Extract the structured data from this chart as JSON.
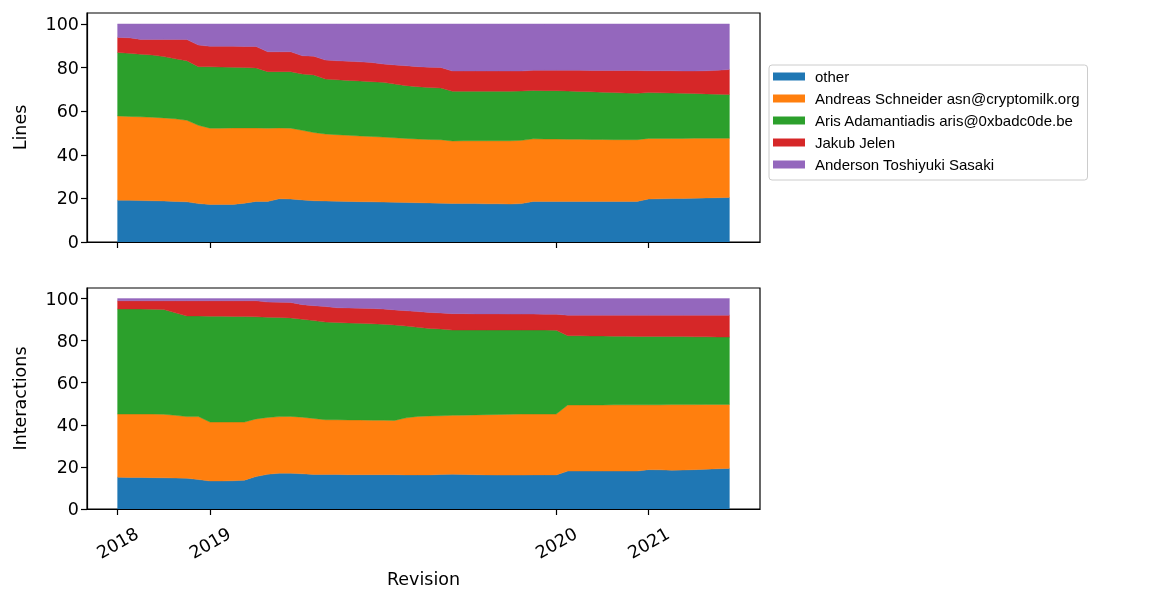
{
  "chart_data": [
    {
      "type": "area",
      "ylabel": "Lines",
      "stacked": true,
      "legend": "right",
      "tick_labels": "y",
      "categories": [
        "2018",
        null,
        null,
        null,
        null,
        null,
        null,
        null,
        "2019",
        null,
        null,
        null,
        null,
        null,
        null,
        null,
        null,
        null,
        null,
        null,
        null,
        null,
        null,
        null,
        null,
        null,
        null,
        null,
        null,
        null,
        null,
        null,
        null,
        null,
        null,
        null,
        null,
        null,
        "2020",
        null,
        null,
        null,
        null,
        null,
        null,
        null,
        "2021",
        null,
        null,
        null,
        null,
        null,
        null,
        null
      ],
      "series": [
        {
          "name": "other",
          "color": "#1f77b4",
          "values": [
            19.2,
            19.1,
            19.0,
            18.9,
            18.8,
            18.6,
            18.4,
            17.6,
            17.2,
            17.2,
            17.2,
            17.8,
            18.6,
            18.6,
            19.8,
            19.7,
            19.3,
            18.9,
            18.8,
            18.7,
            18.6,
            18.5,
            18.4,
            18.3,
            18.2,
            18.1,
            18.0,
            17.9,
            17.8,
            17.7,
            17.6,
            17.6,
            17.5,
            17.5,
            17.4,
            17.6,
            18.6,
            18.6,
            18.6,
            18.6,
            18.6,
            18.6,
            18.6,
            18.6,
            18.6,
            18.6,
            19.7,
            19.8,
            19.9,
            20.0,
            20.1,
            20.2,
            20.3,
            20.4
          ]
        },
        {
          "name": "Andreas Schneider asn@cryptomilk.org",
          "color": "#ff7f0e",
          "values": [
            38.6,
            38.5,
            38.4,
            38.3,
            38.1,
            37.9,
            37.4,
            35.9,
            35.0,
            35.0,
            35.1,
            34.5,
            33.7,
            33.6,
            32.5,
            32.5,
            31.9,
            31.3,
            30.7,
            30.5,
            30.3,
            30.1,
            30.0,
            29.8,
            29.6,
            29.4,
            29.2,
            29.1,
            29.1,
            28.6,
            28.8,
            28.8,
            28.9,
            28.9,
            29.0,
            29.0,
            28.7,
            28.6,
            28.6,
            28.5,
            28.5,
            28.4,
            28.4,
            28.3,
            28.3,
            28.3,
            27.8,
            27.7,
            27.6,
            27.5,
            27.5,
            27.4,
            27.3,
            27.2
          ]
        },
        {
          "name": "Aris Adamantiadis aris@0xbadc0de.be",
          "color": "#2ca02c",
          "values": [
            29.1,
            28.9,
            28.7,
            28.5,
            28.1,
            27.5,
            27.3,
            26.9,
            28.1,
            28.0,
            27.8,
            27.7,
            27.5,
            25.9,
            25.8,
            25.9,
            25.8,
            26.4,
            25.2,
            25.2,
            25.2,
            25.2,
            25.1,
            25.1,
            24.6,
            24.2,
            24.0,
            23.8,
            23.7,
            22.8,
            22.7,
            22.7,
            22.7,
            22.7,
            22.7,
            22.6,
            22.2,
            22.2,
            22.2,
            22.1,
            21.9,
            21.9,
            21.7,
            21.6,
            21.4,
            21.3,
            21.0,
            20.9,
            20.8,
            20.7,
            20.5,
            20.3,
            20.2,
            20.0
          ]
        },
        {
          "name": "Jakub Jelen",
          "color": "#d62728",
          "values": [
            6.9,
            7.1,
            6.8,
            7.2,
            7.9,
            8.9,
            9.7,
            9.9,
            9.4,
            9.5,
            9.6,
            9.6,
            9.8,
            9.1,
            9.1,
            9.1,
            8.4,
            8.6,
            8.7,
            8.7,
            8.8,
            8.8,
            8.8,
            8.4,
            8.8,
            9.1,
            9.2,
            9.3,
            9.4,
            9.3,
            9.3,
            9.3,
            9.3,
            9.3,
            9.3,
            9.2,
            9.2,
            9.3,
            9.3,
            9.5,
            9.7,
            9.7,
            9.9,
            10.1,
            10.3,
            10.4,
            10.0,
            10.1,
            10.2,
            10.2,
            10.3,
            10.6,
            10.9,
            11.5
          ]
        },
        {
          "name": "Anderson Toshiyuki Sasaki",
          "color": "#9467bd",
          "values": [
            6.2,
            6.4,
            7.1,
            7.1,
            7.1,
            7.1,
            7.2,
            9.7,
            10.3,
            10.3,
            10.3,
            10.4,
            10.4,
            12.8,
            12.8,
            12.8,
            14.6,
            14.8,
            16.6,
            16.9,
            17.1,
            17.4,
            17.7,
            18.4,
            18.8,
            19.2,
            19.6,
            19.9,
            20.0,
            21.6,
            21.6,
            21.6,
            21.6,
            21.6,
            21.6,
            21.6,
            21.3,
            21.3,
            21.3,
            21.3,
            21.3,
            21.4,
            21.4,
            21.4,
            21.4,
            21.4,
            21.5,
            21.5,
            21.5,
            21.6,
            21.6,
            21.5,
            21.3,
            20.9
          ]
        }
      ],
      "ylim": [
        0,
        105
      ],
      "yticks": [
        0,
        20,
        40,
        60,
        80,
        100
      ]
    },
    {
      "type": "area",
      "xlabel": "Revision",
      "ylabel": "Interactions",
      "stacked": true,
      "categories": [
        "2018",
        null,
        null,
        null,
        null,
        null,
        null,
        null,
        "2019",
        null,
        null,
        null,
        null,
        null,
        null,
        null,
        null,
        null,
        null,
        null,
        null,
        null,
        null,
        null,
        null,
        null,
        null,
        null,
        null,
        null,
        null,
        null,
        null,
        null,
        null,
        null,
        null,
        null,
        "2020",
        null,
        null,
        null,
        null,
        null,
        null,
        null,
        "2021",
        null,
        null,
        null,
        null,
        null,
        null,
        null
      ],
      "series": [
        {
          "color": "#1f77b4",
          "values": [
            15.1,
            15.0,
            15.0,
            14.9,
            14.8,
            14.7,
            14.6,
            14.0,
            13.3,
            13.3,
            13.4,
            13.7,
            15.4,
            16.5,
            17.0,
            17.0,
            16.7,
            16.4,
            16.4,
            16.4,
            16.3,
            16.3,
            16.3,
            16.3,
            16.3,
            16.2,
            16.2,
            16.2,
            16.4,
            16.5,
            16.4,
            16.3,
            16.2,
            16.1,
            16.1,
            16.1,
            16.2,
            16.2,
            16.2,
            18.0,
            18.0,
            18.0,
            18.0,
            18.0,
            18.0,
            18.0,
            18.7,
            18.6,
            18.4,
            18.5,
            18.7,
            18.9,
            19.1,
            19.3
          ]
        },
        {
          "color": "#ff7f0e",
          "values": [
            30.0,
            30.1,
            30.1,
            30.2,
            30.2,
            29.8,
            29.3,
            29.9,
            28.0,
            28.0,
            27.9,
            27.6,
            27.4,
            27.0,
            26.9,
            27.0,
            26.9,
            26.6,
            26.0,
            26.0,
            26.0,
            26.0,
            25.9,
            25.9,
            25.8,
            27.1,
            27.8,
            28.0,
            27.9,
            28.0,
            28.2,
            28.4,
            28.6,
            28.8,
            28.9,
            29.0,
            28.9,
            28.9,
            28.9,
            31.4,
            31.4,
            31.4,
            31.4,
            31.5,
            31.5,
            31.5,
            30.8,
            30.9,
            31.2,
            31.1,
            30.9,
            30.8,
            30.6,
            30.4
          ]
        },
        {
          "color": "#2ca02c",
          "values": [
            49.9,
            49.9,
            49.9,
            49.8,
            49.8,
            48.7,
            47.8,
            47.8,
            50.3,
            50.3,
            50.2,
            50.1,
            48.5,
            47.6,
            47.1,
            46.8,
            46.6,
            46.5,
            46.4,
            46.2,
            46.1,
            45.9,
            45.8,
            45.6,
            45.3,
            43.6,
            42.3,
            41.6,
            41.2,
            40.5,
            40.4,
            40.3,
            40.2,
            40.1,
            40.0,
            39.9,
            39.9,
            39.9,
            39.8,
            32.9,
            32.9,
            32.8,
            32.8,
            32.6,
            32.6,
            32.5,
            32.5,
            32.5,
            32.3,
            32.3,
            32.2,
            32.1,
            32.0,
            32.0
          ]
        },
        {
          "color": "#d62728",
          "values": [
            3.9,
            3.9,
            3.9,
            4.0,
            4.1,
            5.7,
            7.2,
            7.2,
            7.3,
            7.3,
            7.4,
            7.5,
            7.6,
            7.2,
            7.2,
            7.3,
            6.9,
            7.1,
            7.4,
            7.0,
            7.1,
            7.2,
            7.3,
            7.2,
            7.2,
            7.3,
            7.5,
            7.6,
            7.6,
            7.8,
            7.8,
            7.7,
            7.7,
            7.7,
            7.6,
            7.6,
            7.6,
            7.5,
            7.6,
            9.8,
            9.8,
            9.9,
            9.9,
            10.0,
            10.0,
            10.1,
            10.1,
            10.1,
            10.2,
            10.2,
            10.3,
            10.3,
            10.4,
            10.4
          ]
        },
        {
          "color": "#9467bd",
          "values": [
            1.1,
            1.1,
            1.1,
            1.1,
            1.1,
            1.1,
            1.1,
            1.1,
            1.1,
            1.1,
            1.1,
            1.1,
            1.1,
            1.7,
            1.8,
            1.9,
            2.9,
            3.4,
            3.8,
            4.4,
            4.5,
            4.6,
            4.7,
            5.0,
            5.4,
            5.8,
            6.2,
            6.6,
            6.9,
            7.2,
            7.2,
            7.3,
            7.3,
            7.3,
            7.4,
            7.4,
            7.4,
            7.5,
            7.5,
            7.9,
            7.9,
            7.9,
            7.9,
            7.9,
            7.9,
            7.9,
            7.9,
            7.9,
            7.9,
            7.9,
            7.9,
            7.9,
            7.9,
            7.9
          ]
        }
      ],
      "ylim": [
        0,
        105
      ],
      "yticks": [
        0,
        20,
        40,
        60,
        80,
        100
      ]
    }
  ]
}
